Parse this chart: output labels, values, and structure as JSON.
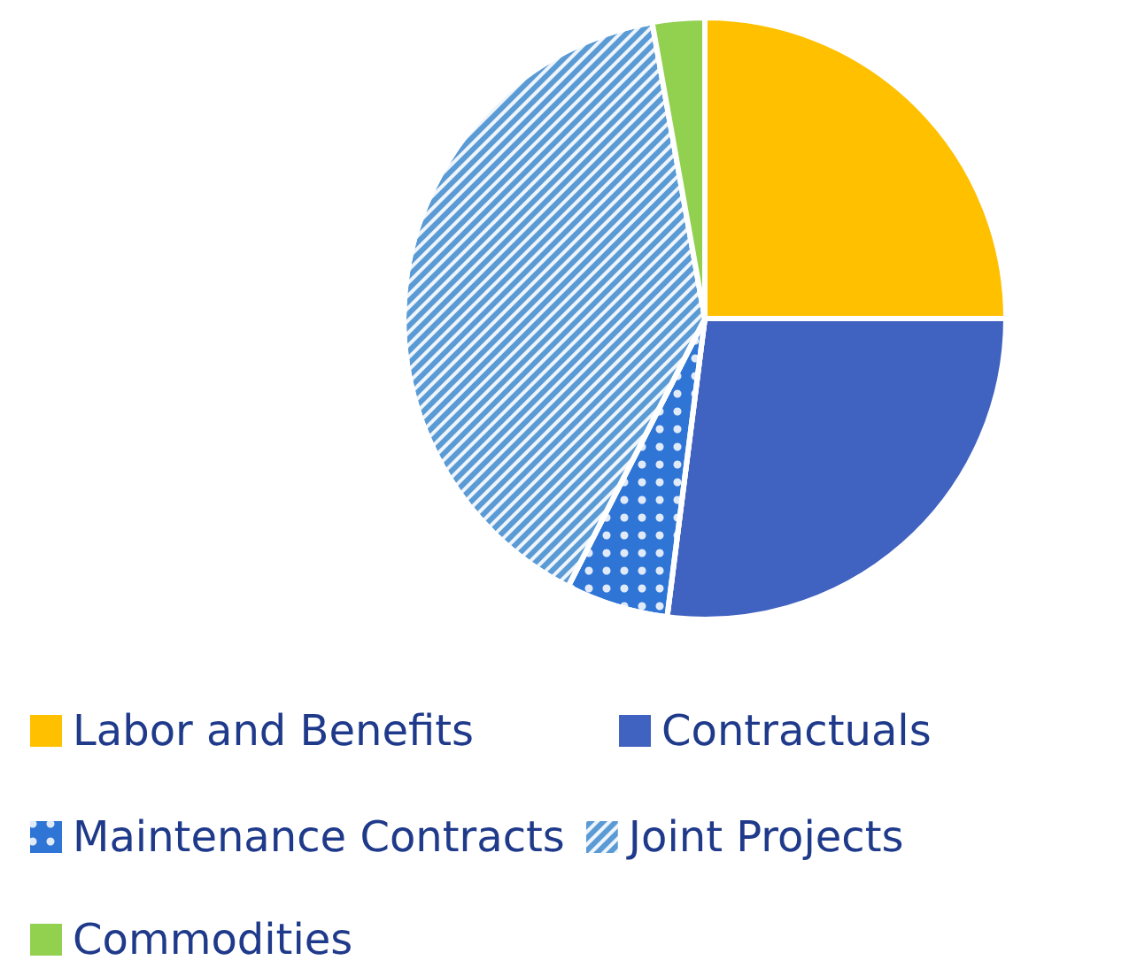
{
  "chart_data": {
    "type": "pie",
    "categories": [
      "Labor and Benefits",
      "Contractuals",
      "Maintenance Contracts",
      "Joint Projects",
      "Commodities"
    ],
    "values": [
      25,
      27,
      5.5,
      39.7,
      2.8
    ],
    "colors": [
      "#ffc000",
      "#4062c0",
      "#2e75d6",
      "#5b9bd5",
      "#92d050"
    ],
    "legend": "bottom"
  }
}
